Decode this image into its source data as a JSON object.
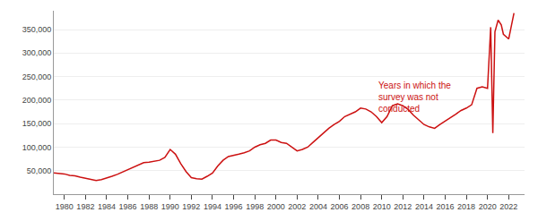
{
  "chart_data": {
    "type": "line",
    "color": "#cc1111",
    "x": [
      1979.0,
      1979.5,
      1980.0,
      1980.5,
      1981.0,
      1981.5,
      1982.0,
      1982.5,
      1983.0,
      1983.5,
      1984.0,
      1984.5,
      1985.0,
      1985.5,
      1986.0,
      1986.5,
      1987.0,
      1987.5,
      1988.0,
      1988.5,
      1989.0,
      1989.5,
      1990.0,
      1990.5,
      1991.0,
      1991.5,
      1992.0,
      1992.5,
      1993.0,
      1993.5,
      1994.0,
      1994.5,
      1995.0,
      1995.5,
      1996.0,
      1996.5,
      1997.0,
      1997.5,
      1998.0,
      1998.5,
      1999.0,
      1999.5,
      2000.0,
      2000.5,
      2001.0,
      2001.5,
      2002.0,
      2002.5,
      2003.0,
      2003.5,
      2004.0,
      2004.5,
      2005.0,
      2005.5,
      2006.0,
      2006.5,
      2007.0,
      2007.5,
      2008.0,
      2008.5,
      2009.0,
      2009.5,
      2010.0,
      2010.5,
      2011.0,
      2011.5,
      2012.0,
      2012.5,
      2013.0,
      2013.5,
      2014.0,
      2014.5,
      2015.0,
      2015.5,
      2016.0,
      2016.5,
      2017.0,
      2017.5,
      2018.0,
      2018.5,
      2019.0,
      2019.5,
      2020.0,
      2020.3,
      2020.5,
      2020.7,
      2021.0,
      2021.3,
      2021.5,
      2022.0,
      2022.5
    ],
    "values": [
      45000,
      44000,
      43000,
      40000,
      39000,
      36000,
      34000,
      31000,
      29000,
      31000,
      34000,
      38000,
      42000,
      47000,
      52000,
      58000,
      62000,
      67000,
      68000,
      70000,
      72000,
      78000,
      95000,
      85000,
      65000,
      48000,
      35000,
      33000,
      32000,
      38000,
      45000,
      60000,
      72000,
      80000,
      82000,
      85000,
      88000,
      92000,
      100000,
      105000,
      108000,
      115000,
      115000,
      110000,
      108000,
      100000,
      92000,
      95000,
      100000,
      110000,
      120000,
      130000,
      140000,
      148000,
      155000,
      165000,
      170000,
      175000,
      183000,
      181000,
      175000,
      165000,
      152000,
      165000,
      188000,
      192000,
      188000,
      180000,
      168000,
      158000,
      148000,
      143000,
      140000,
      148000,
      155000,
      163000,
      170000,
      178000,
      183000,
      190000,
      225000,
      228000,
      225000,
      355000,
      130000,
      345000,
      370000,
      360000,
      340000,
      330000,
      385000
    ],
    "xlim": [
      1979,
      2023.5
    ],
    "ylim": [
      0,
      390000
    ],
    "xticks": [
      1980,
      1982,
      1984,
      1986,
      1988,
      1990,
      1992,
      1994,
      1996,
      1998,
      2000,
      2002,
      2004,
      2006,
      2008,
      2010,
      2012,
      2014,
      2016,
      2018,
      2020,
      2022
    ],
    "yticks": [
      {
        "value": 50000,
        "label": "50,000"
      },
      {
        "value": 100000,
        "label": "100,000"
      },
      {
        "value": 150000,
        "label": "150,000"
      },
      {
        "value": 200000,
        "label": "200,000"
      },
      {
        "value": 250000,
        "label": "250,000"
      },
      {
        "value": 300000,
        "label": "300,000"
      },
      {
        "value": 350000,
        "label": "350,000"
      }
    ],
    "grid": true,
    "annotations": [
      {
        "text": "Years in which the\nsurvey was not\nconducted",
        "x": 2009.5,
        "y": 245000,
        "color": "#cc1111"
      }
    ]
  }
}
